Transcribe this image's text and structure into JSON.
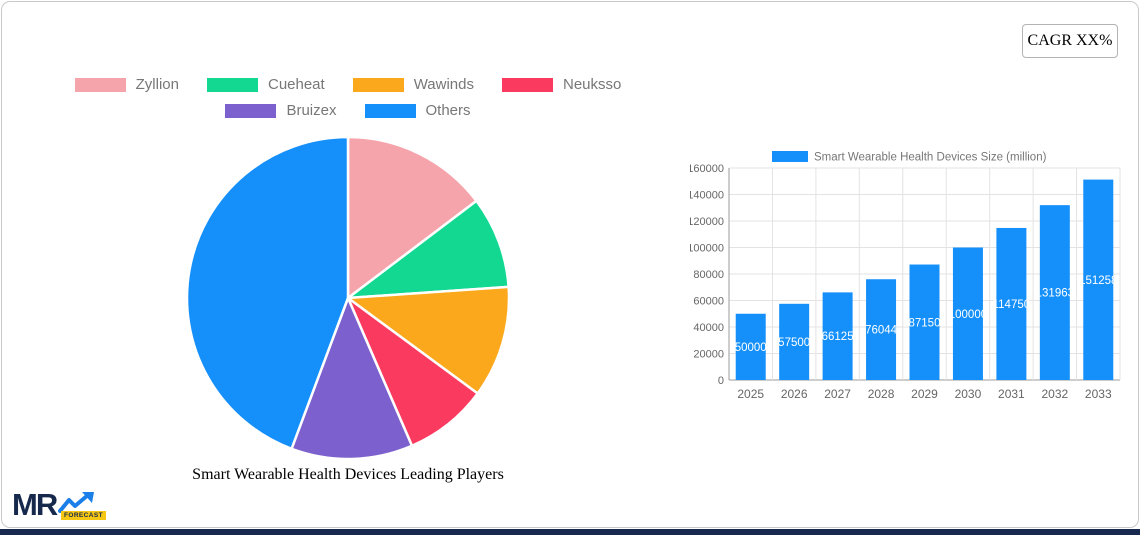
{
  "card": {
    "border_color": "#c9c9c9",
    "background": "#ffffff",
    "bottom_strip_color": "#17294e"
  },
  "cagr": {
    "label": "CAGR XX%"
  },
  "logo": {
    "mr": "MR",
    "forecast": "FORECAST",
    "mr_color": "#16294d",
    "arrow_color": "#1a7fe8",
    "badge_color": "#f6c714"
  },
  "chart_data": [
    {
      "type": "pie",
      "title": "Smart Wearable Health Devices Leading Players",
      "labels": [
        "Zyllion",
        "Cueheat",
        "Wawinds",
        "Neuksso",
        "Bruizex",
        "Others"
      ],
      "values_percent": [
        14.7,
        9.2,
        11.2,
        8.4,
        12.2,
        44.3
      ],
      "colors": [
        "#f5a4ab",
        "#13d892",
        "#fba81c",
        "#fa3b5f",
        "#7c61ce",
        "#1590fa"
      ],
      "start_angle_deg": 0,
      "direction": "clockwise",
      "legend_position": "top",
      "legend_rows": [
        [
          0,
          1,
          2,
          3
        ],
        [
          4,
          5
        ]
      ],
      "slice_border_color": "#ffffff"
    },
    {
      "type": "bar",
      "legend": "Smart Wearable Health Devices Size (million)",
      "categories": [
        "2025",
        "2026",
        "2027",
        "2028",
        "2029",
        "2030",
        "2031",
        "2032",
        "2033"
      ],
      "values": [
        50000,
        57500,
        66125,
        76044,
        87150,
        100000,
        114750,
        131963,
        151258
      ],
      "bar_color": "#1590fa",
      "value_label_color": "#ffffff",
      "ylim": [
        0,
        160000
      ],
      "ytick_step": 20000,
      "ytick_labels": [
        "0",
        "20000",
        "40000",
        "60000",
        "80000",
        "100000",
        "120000",
        "140000",
        "160000"
      ],
      "grid": true,
      "grid_color": "#e3e3e3",
      "axis_color": "#9b9b9b",
      "tick_text_color": "#666666"
    }
  ]
}
